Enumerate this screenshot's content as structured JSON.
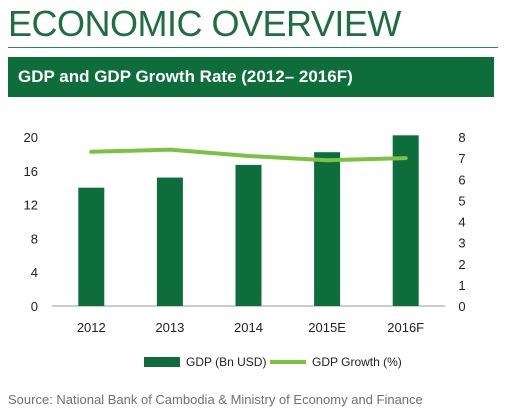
{
  "header": {
    "title": "ECONOMIC OVERVIEW",
    "banner": "GDP and GDP Growth Rate (2012– 2016F)"
  },
  "source": "Source: National Bank of Cambodia & Ministry of Economy and Finance",
  "colors": {
    "bar": "#0e6e3b",
    "line": "#7cc242",
    "banner": "#0e6e3b",
    "title": "#1f6e3f"
  },
  "chart_data": {
    "type": "bar",
    "title": "",
    "categories": [
      "2012",
      "2013",
      "2014",
      "2015E",
      "2016F"
    ],
    "series": [
      {
        "name": "GDP (Bn USD)",
        "type": "bar",
        "axis": "left",
        "values": [
          14.0,
          15.2,
          16.7,
          18.2,
          20.2
        ]
      },
      {
        "name": "GDP Growth (%)",
        "type": "line",
        "axis": "right",
        "values": [
          7.3,
          7.4,
          7.1,
          6.9,
          7.0
        ]
      }
    ],
    "y_left": {
      "min": 0,
      "max": 20,
      "ticks": [
        "0",
        "4",
        "8",
        "12",
        "16",
        "20"
      ]
    },
    "y_right": {
      "min": 0,
      "max": 8,
      "ticks": [
        "0",
        "1",
        "2",
        "3",
        "4",
        "5",
        "6",
        "7",
        "8"
      ]
    },
    "grid": false,
    "legend": "bottom"
  }
}
